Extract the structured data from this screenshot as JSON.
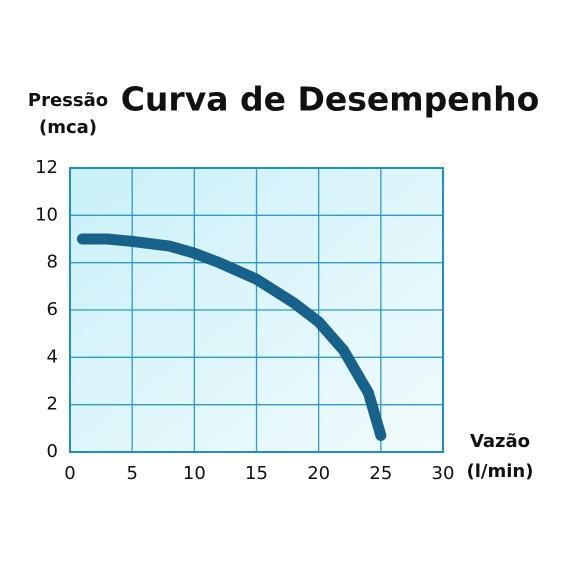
{
  "chart_data": {
    "type": "line",
    "title": "Curva de Desempenho",
    "ylabel_lines": [
      "Pressão",
      "(mca)"
    ],
    "xlabel_lines": [
      "Vazão",
      "(l/min)"
    ],
    "x": [
      1,
      3,
      5,
      8,
      10,
      12,
      15,
      18,
      20,
      22,
      24,
      25
    ],
    "series": [
      {
        "color": "#17628a",
        "values": [
          9.0,
          9.0,
          8.9,
          8.7,
          8.4,
          8.0,
          7.3,
          6.3,
          5.5,
          4.3,
          2.5,
          0.7
        ]
      }
    ],
    "xlim": [
      0,
      30
    ],
    "xticks": [
      0,
      5,
      10,
      15,
      20,
      25,
      30
    ],
    "ylim": [
      0,
      12
    ],
    "yticks": [
      0,
      2,
      4,
      6,
      8,
      10,
      12
    ],
    "grid": true
  }
}
